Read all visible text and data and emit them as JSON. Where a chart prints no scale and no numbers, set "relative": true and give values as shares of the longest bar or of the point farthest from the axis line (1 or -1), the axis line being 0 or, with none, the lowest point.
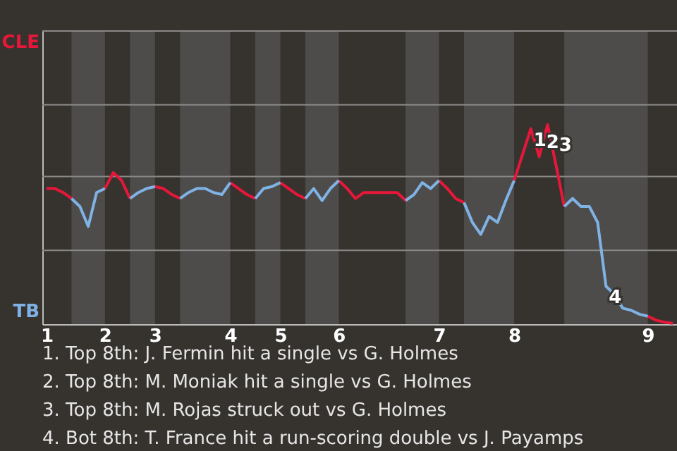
{
  "chart_data": {
    "type": "line",
    "categories": [
      "1",
      null,
      null,
      null,
      null,
      null,
      null,
      "2",
      null,
      null,
      null,
      null,
      null,
      "3",
      null,
      null,
      null,
      null,
      null,
      null,
      null,
      null,
      "4",
      null,
      null,
      null,
      null,
      null,
      "5",
      null,
      null,
      null,
      null,
      null,
      null,
      "6",
      null,
      null,
      null,
      null,
      null,
      null,
      null,
      null,
      null,
      null,
      null,
      "7",
      null,
      null,
      null,
      null,
      null,
      null,
      null,
      null,
      "8",
      null,
      null,
      null,
      null,
      null,
      null,
      null,
      null,
      null,
      null,
      null,
      null,
      null,
      null,
      null,
      "9",
      null,
      null,
      null
    ],
    "relative": true,
    "series": [
      {
        "name": "CLE",
        "color": "#e8173a",
        "values": [
          0.68,
          0.68,
          0.66,
          0.63,
          null,
          null,
          null,
          0.68,
          0.76,
          0.72,
          0.63,
          null,
          null,
          0.69,
          0.68,
          0.65,
          0.63,
          null,
          null,
          null,
          null,
          null,
          0.71,
          0.68,
          0.65,
          0.63,
          null,
          null,
          0.71,
          0.68,
          0.65,
          0.63,
          null,
          null,
          null,
          0.72,
          0.68,
          0.63,
          0.66,
          0.66,
          0.66,
          0.66,
          0.66,
          0.62,
          null,
          null,
          null,
          0.72,
          0.68,
          0.63,
          0.61,
          null,
          null,
          null,
          null,
          null,
          0.72,
          0.85,
          0.98,
          0.84,
          1,
          0.8,
          0.59,
          null,
          null,
          null,
          null,
          null,
          null,
          null,
          null,
          null,
          0.04,
          0.02,
          0.01,
          0.004
        ]
      },
      {
        "name": "TB",
        "color": "#7fb2e5",
        "values": [
          null,
          null,
          null,
          0.63,
          0.59,
          0.49,
          0.66,
          0.68,
          null,
          null,
          0.63,
          0.66,
          0.68,
          0.69,
          null,
          null,
          0.63,
          0.66,
          0.68,
          0.68,
          0.66,
          0.65,
          0.71,
          null,
          null,
          0.63,
          0.68,
          0.69,
          0.71,
          null,
          null,
          0.63,
          0.68,
          0.62,
          0.68,
          0.72,
          null,
          null,
          null,
          null,
          null,
          null,
          null,
          0.62,
          0.65,
          0.71,
          0.68,
          0.72,
          null,
          null,
          0.61,
          0.51,
          0.45,
          0.54,
          0.51,
          0.62,
          0.72,
          null,
          null,
          null,
          null,
          null,
          0.59,
          0.63,
          0.59,
          0.59,
          0.51,
          0.19,
          0.15,
          0.08,
          0.07,
          0.05,
          0.04,
          null,
          null,
          null
        ]
      }
    ],
    "ref_lines": [
      {
        "axis": "y",
        "value": 0.37,
        "color": "#8a8886"
      },
      {
        "axis": "y",
        "value": 0.74,
        "color": "#8a8886"
      },
      {
        "axis": "y",
        "value": 1.1,
        "color": "#8a8886"
      },
      {
        "axis": "y",
        "value": 1.47,
        "color": "#8a8886"
      }
    ],
    "marker": "none",
    "line_style": "solid",
    "annotations": [
      {
        "text": "1",
        "y": 0.98
      },
      "2",
      "3",
      {
        "text": "4",
        "y": 0.19
      },
      "1. Top 8th: J. Fermin hit a single vs G. Holmes",
      "2. Top 8th: M. Moniak hit a single vs G. Holmes",
      "3. Top 8th: M. Rojas struck out vs G. Holmes",
      "4. Bot 8th: T. France hit a run-scoring double vs J. Payamps"
    ]
  }
}
